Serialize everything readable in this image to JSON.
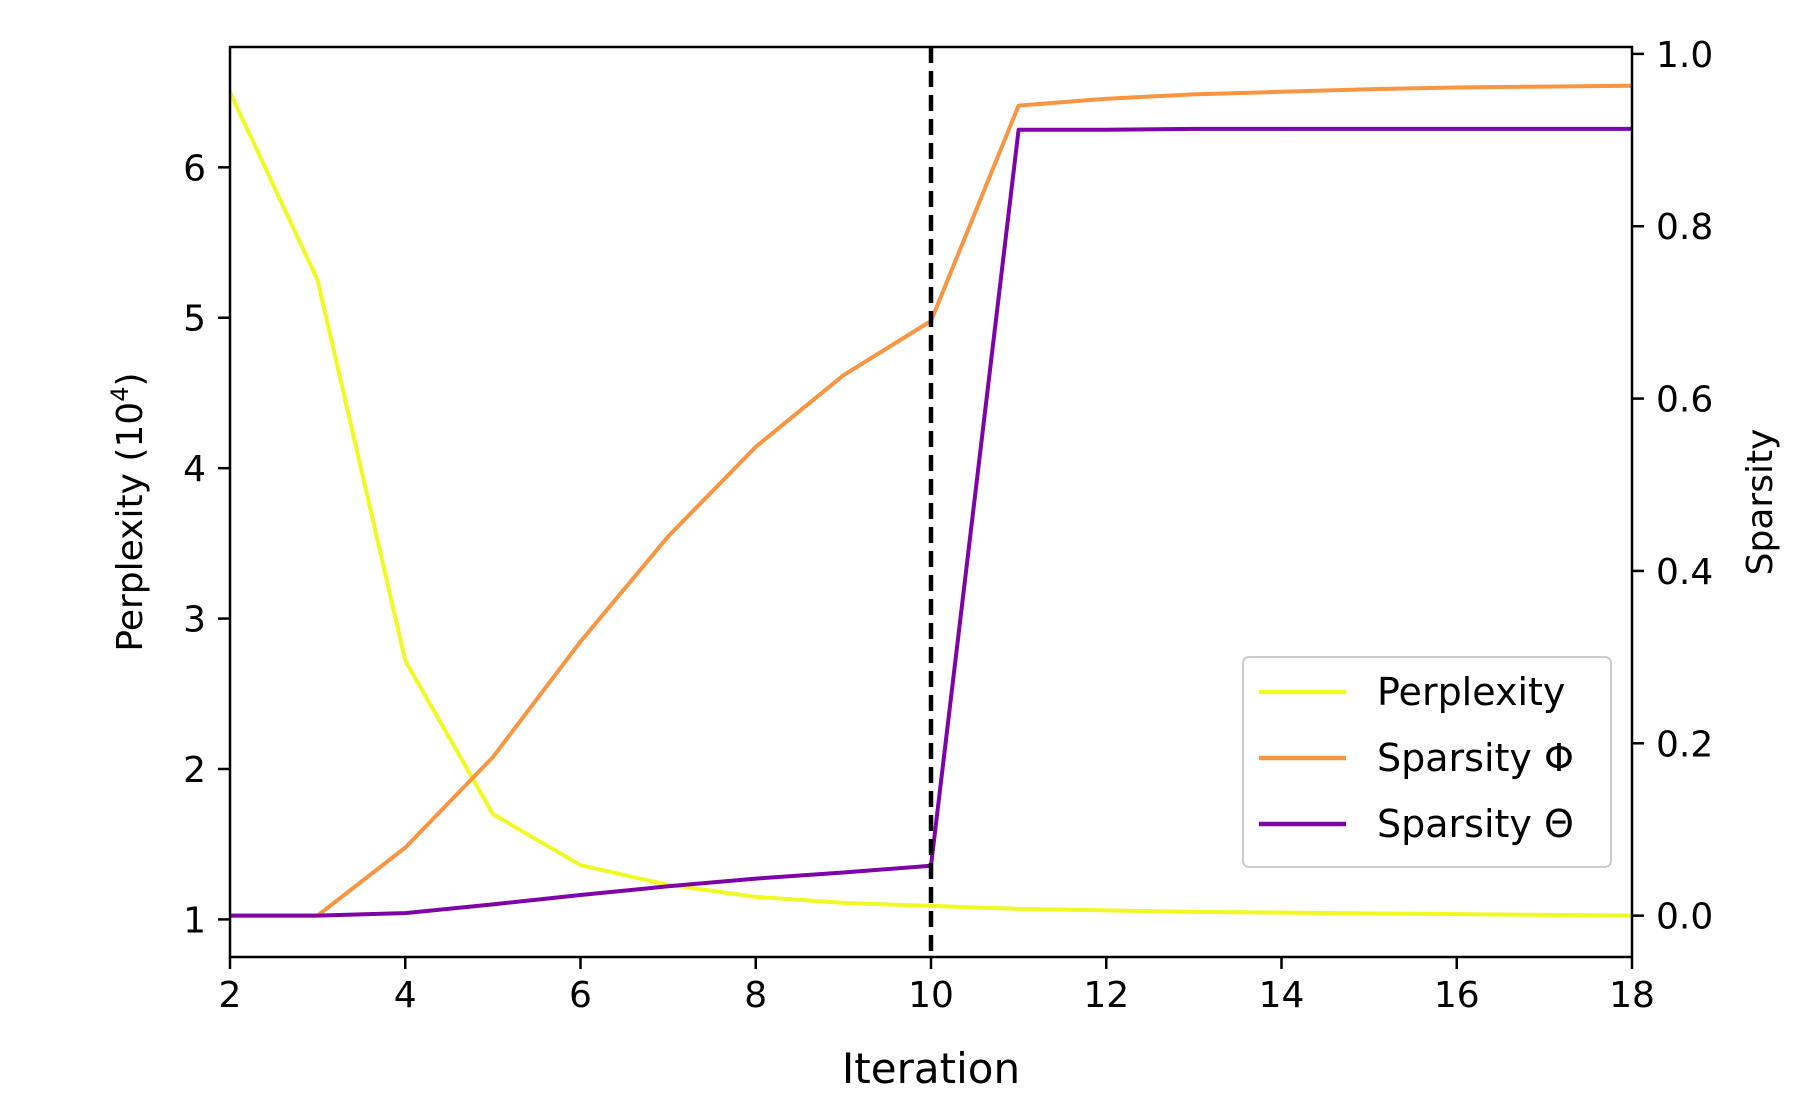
{
  "chart_data": {
    "type": "line",
    "xlabel": "Iteration",
    "ylabel_left": "Perplexity (10",
    "ylabel_left_exp": "4",
    "ylabel_left_close": ")",
    "ylabel_right": "Sparsity",
    "xlim": [
      2,
      18
    ],
    "ylim_left": [
      0.75,
      6.8
    ],
    "ylim_right": [
      -0.048,
      1.008
    ],
    "xticks": [
      2,
      4,
      6,
      8,
      10,
      12,
      14,
      16,
      18
    ],
    "yticks_left": [
      1,
      2,
      3,
      4,
      5,
      6
    ],
    "yticks_right": [
      "0.0",
      "0.2",
      "0.4",
      "0.6",
      "0.8",
      "1.0"
    ],
    "vline_x": 10,
    "legend_position": "lower-right",
    "grid": false,
    "series": [
      {
        "name": "Perplexity",
        "axis": "left",
        "color": "#f0f921",
        "x": [
          2,
          3,
          4,
          5,
          6,
          7,
          8,
          9,
          10,
          11,
          12,
          13,
          14,
          15,
          16,
          17,
          18
        ],
        "y": [
          6.5,
          5.25,
          2.72,
          1.7,
          1.36,
          1.23,
          1.15,
          1.11,
          1.09,
          1.07,
          1.06,
          1.05,
          1.045,
          1.04,
          1.035,
          1.03,
          1.025
        ]
      },
      {
        "name": "Sparsity Φ",
        "axis": "right",
        "color": "#f89540",
        "x": [
          2,
          3,
          4,
          5,
          6,
          7,
          8,
          9,
          10,
          11,
          12,
          13,
          14,
          15,
          16,
          17,
          18
        ],
        "y": [
          0.0,
          0.0,
          0.079,
          0.184,
          0.318,
          0.44,
          0.544,
          0.627,
          0.69,
          0.94,
          0.948,
          0.953,
          0.956,
          0.959,
          0.961,
          0.962,
          0.963
        ]
      },
      {
        "name": "Sparsity Θ",
        "axis": "right",
        "color": "#7e03a8",
        "x": [
          2,
          3,
          4,
          5,
          6,
          7,
          8,
          9,
          10,
          11,
          12,
          13,
          14,
          15,
          16,
          17,
          18
        ],
        "y": [
          0.0,
          0.0,
          0.003,
          0.013,
          0.024,
          0.034,
          0.043,
          0.05,
          0.058,
          0.912,
          0.912,
          0.913,
          0.913,
          0.913,
          0.913,
          0.913,
          0.913
        ]
      }
    ]
  }
}
